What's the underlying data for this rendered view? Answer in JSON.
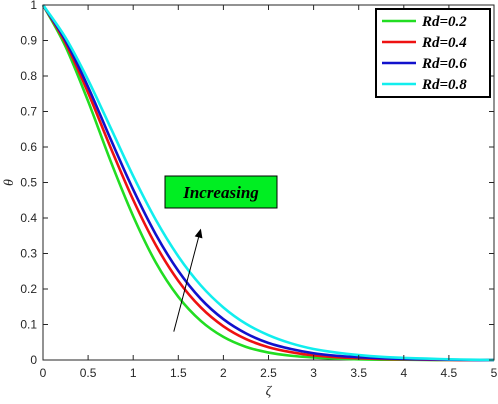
{
  "chart_data": {
    "type": "line",
    "title": "",
    "xlabel": "ζ",
    "ylabel": "θ",
    "xlim": [
      0,
      5
    ],
    "ylim": [
      0,
      1
    ],
    "xticks": [
      "0",
      "0.5",
      "1",
      "1.5",
      "2",
      "2.5",
      "3",
      "3.5",
      "4",
      "4.5",
      "5"
    ],
    "yticks": [
      "0",
      "0.1",
      "0.2",
      "0.3",
      "0.4",
      "0.5",
      "0.6",
      "0.7",
      "0.8",
      "0.9",
      "1"
    ],
    "grid": false,
    "legend_position": "top-right",
    "x": [
      0,
      0.25,
      0.5,
      0.75,
      1.0,
      1.25,
      1.5,
      1.75,
      2.0,
      2.25,
      2.5,
      2.75,
      3.0,
      3.25,
      3.5,
      3.75,
      4.0,
      4.25,
      4.5,
      4.75,
      5.0
    ],
    "series": [
      {
        "name": "Rd=0.2",
        "color": "#22dd22",
        "values": [
          1.0,
          0.883,
          0.729,
          0.56,
          0.405,
          0.275,
          0.178,
          0.11,
          0.065,
          0.037,
          0.021,
          0.012,
          0.007,
          0.004,
          0.002,
          0.001,
          0.001,
          0.0,
          0.0,
          0.0,
          0.0
        ]
      },
      {
        "name": "Rd=0.4",
        "color": "#ee1111",
        "values": [
          1.0,
          0.893,
          0.753,
          0.598,
          0.451,
          0.324,
          0.223,
          0.148,
          0.095,
          0.059,
          0.036,
          0.022,
          0.013,
          0.008,
          0.005,
          0.003,
          0.002,
          0.001,
          0.0,
          0.0,
          0.0
        ]
      },
      {
        "name": "Rd=0.6",
        "color": "#1111cc",
        "values": [
          1.0,
          0.9,
          0.769,
          0.622,
          0.48,
          0.354,
          0.251,
          0.172,
          0.115,
          0.075,
          0.048,
          0.031,
          0.019,
          0.012,
          0.008,
          0.005,
          0.003,
          0.002,
          0.001,
          0.0,
          0.0
        ]
      },
      {
        "name": "Rd=0.8",
        "color": "#11eeee",
        "values": [
          1.0,
          0.908,
          0.789,
          0.654,
          0.518,
          0.395,
          0.292,
          0.21,
          0.148,
          0.102,
          0.07,
          0.047,
          0.031,
          0.021,
          0.014,
          0.009,
          0.006,
          0.004,
          0.002,
          0.001,
          0.0
        ]
      }
    ],
    "annotation": {
      "text": "Increasing",
      "box_color": "#00ee22",
      "arrow_from": [
        1.45,
        0.08
      ],
      "arrow_to": [
        1.75,
        0.37
      ]
    }
  }
}
